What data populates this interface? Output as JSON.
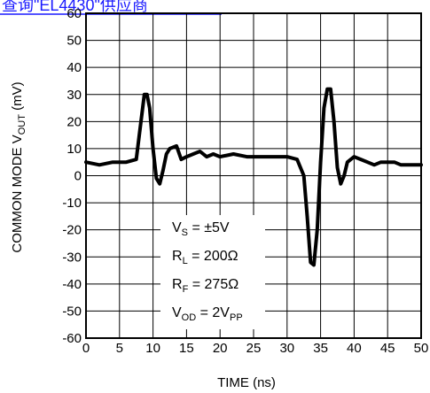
{
  "top_link": {
    "text": "查询\"EL4430\"供应商",
    "color": "#1a1aff"
  },
  "chart_data": {
    "type": "line",
    "xlabel": "TIME (ns)",
    "ylabel_parts": {
      "main": "COMMON MODE V",
      "sub": "OUT",
      "unit": " (mV)"
    },
    "xlim": [
      0,
      50
    ],
    "ylim": [
      -60,
      60
    ],
    "x_ticks": [
      0,
      5,
      10,
      15,
      20,
      25,
      30,
      35,
      40,
      45,
      50
    ],
    "y_ticks": [
      60,
      50,
      40,
      30,
      20,
      10,
      0,
      -10,
      -20,
      -30,
      -40,
      -50,
      -60
    ],
    "grid": true,
    "series": [
      {
        "x": [
          0,
          2,
          4,
          6,
          7.5,
          8.2,
          8.7,
          9.1,
          9.5,
          10,
          10.5,
          11,
          11.5,
          12,
          12.5,
          13.5,
          14.2,
          15,
          16,
          17,
          18,
          19,
          20,
          22,
          24,
          26,
          28,
          30,
          31.5,
          32.5,
          33,
          33.5,
          34,
          34.5,
          35,
          35.5,
          36,
          36.5,
          37,
          37.5,
          38,
          38.5,
          39,
          40,
          41,
          42,
          43,
          44,
          45,
          46,
          47,
          48,
          50
        ],
        "y": [
          5,
          4,
          5,
          5,
          6,
          20,
          30,
          30,
          25,
          10,
          -1,
          -3,
          2,
          8,
          10,
          11,
          6,
          7,
          8,
          9,
          7,
          8,
          7,
          8,
          7,
          7,
          7,
          7,
          6,
          0,
          -15,
          -32,
          -33,
          -20,
          5,
          25,
          32,
          32,
          20,
          3,
          -3,
          0,
          5,
          7,
          6,
          5,
          4,
          5,
          5,
          5,
          4,
          4,
          4
        ]
      }
    ],
    "line_color": "#000000"
  },
  "conditions": [
    {
      "pre": "V",
      "sub": "S",
      "post": " = ±5V"
    },
    {
      "pre": "R",
      "sub": "L",
      "post": " = 200Ω"
    },
    {
      "pre": "R",
      "sub": "F",
      "post": " = 275Ω"
    },
    {
      "pre": "V",
      "sub": "OD",
      "post": " = 2V",
      "sub2": "PP"
    }
  ]
}
